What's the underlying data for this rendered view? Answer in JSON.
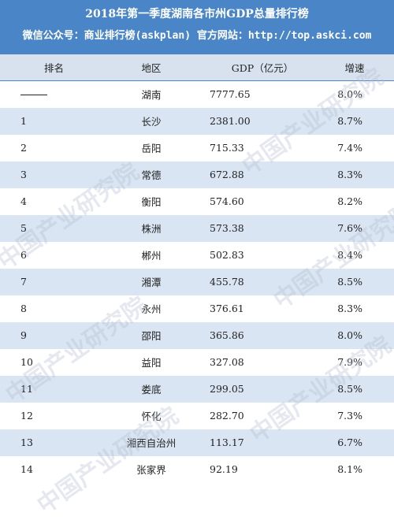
{
  "header": {
    "title": "2018年第一季度湖南各市州GDP总量排行榜",
    "subtitle": "微信公众号：商业排行榜(askplan) 官方网站：http://top.askci.com"
  },
  "table": {
    "columns": [
      "排名",
      "地区",
      "GDP（亿元）",
      "增速"
    ],
    "rows": [
      {
        "rank": "",
        "region": "湖南",
        "gdp": "7777.65",
        "growth": "8.0%"
      },
      {
        "rank": "1",
        "region": "长沙",
        "gdp": "2381.00",
        "growth": "8.7%"
      },
      {
        "rank": "2",
        "region": "岳阳",
        "gdp": "715.33",
        "growth": "7.4%"
      },
      {
        "rank": "3",
        "region": "常德",
        "gdp": "672.88",
        "growth": "8.3%"
      },
      {
        "rank": "4",
        "region": "衡阳",
        "gdp": "574.60",
        "growth": "8.2%"
      },
      {
        "rank": "5",
        "region": "株洲",
        "gdp": "573.38",
        "growth": "7.6%"
      },
      {
        "rank": "6",
        "region": "郴州",
        "gdp": "502.83",
        "growth": "8.4%"
      },
      {
        "rank": "7",
        "region": "湘潭",
        "gdp": "455.78",
        "growth": "8.5%"
      },
      {
        "rank": "8",
        "region": "永州",
        "gdp": "376.61",
        "growth": "8.3%"
      },
      {
        "rank": "9",
        "region": "邵阳",
        "gdp": "365.86",
        "growth": "8.0%"
      },
      {
        "rank": "10",
        "region": "益阳",
        "gdp": "327.08",
        "growth": "7.9%"
      },
      {
        "rank": "11",
        "region": "娄底",
        "gdp": "299.05",
        "growth": "8.5%"
      },
      {
        "rank": "12",
        "region": "怀化",
        "gdp": "282.70",
        "growth": "7.3%"
      },
      {
        "rank": "13",
        "region": "湘西自治州",
        "gdp": "113.17",
        "growth": "6.7%"
      },
      {
        "rank": "14",
        "region": "张家界",
        "gdp": "92.19",
        "growth": "8.1%"
      }
    ]
  },
  "watermark": "中国产业研究院",
  "colors": {
    "header_bg": "#4a86c7",
    "row_alt": "#d9e5f3",
    "header_row": "#d8e2ef"
  }
}
